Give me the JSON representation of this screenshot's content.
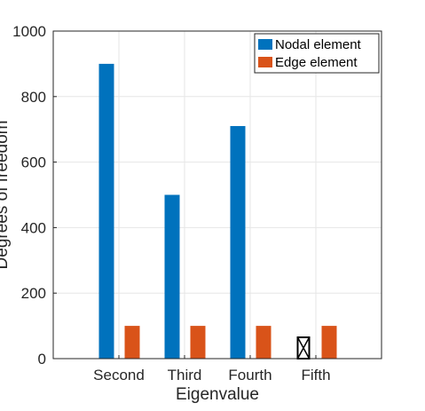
{
  "chart_data": {
    "type": "bar",
    "categories": [
      "Second",
      "Third",
      "Fourth",
      "Fifth"
    ],
    "series": [
      {
        "name": "Nodal element",
        "color": "#0072BD",
        "values": [
          900,
          500,
          710,
          null
        ]
      },
      {
        "name": "Edge element",
        "color": "#D95319",
        "values": [
          100,
          100,
          100,
          100
        ]
      }
    ],
    "missing_marker": {
      "category": "Fifth",
      "series": "Nodal element",
      "value": 65,
      "icon": "crossed-box-icon"
    },
    "xlabel": "Eigenvalue",
    "ylabel": "Degrees of freedom",
    "ylim": [
      0,
      1000
    ],
    "yticks": [
      0,
      200,
      400,
      600,
      800,
      1000
    ],
    "grid": true,
    "legend_position": "top-right"
  }
}
